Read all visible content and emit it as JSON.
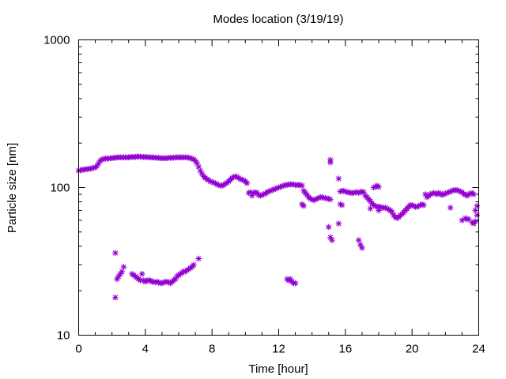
{
  "chart_data": {
    "type": "scatter",
    "title": "Modes location (3/19/19)",
    "xlabel": "Time [hour]",
    "ylabel": "Particle size [nm]",
    "xlim": [
      0,
      24
    ],
    "ylim": [
      10,
      1000
    ],
    "yscale": "log",
    "grid": false,
    "legend": "none",
    "color": "#9400d3",
    "x_ticks": [
      0,
      4,
      8,
      12,
      16,
      20,
      24
    ],
    "x_tick_labels": [
      "0",
      "4",
      "8",
      "12",
      "16",
      "20",
      "24"
    ],
    "y_ticks": [
      10,
      100,
      1000
    ],
    "y_tick_labels": [
      "10",
      "100",
      "1000"
    ],
    "series": [
      {
        "points": [
          [
            0.0,
            130
          ],
          [
            0.1,
            131
          ],
          [
            0.2,
            132
          ],
          [
            0.3,
            132
          ],
          [
            0.4,
            133
          ],
          [
            0.5,
            133
          ],
          [
            0.6,
            134
          ],
          [
            0.7,
            134
          ],
          [
            0.8,
            135
          ],
          [
            0.9,
            136
          ],
          [
            1.0,
            137
          ],
          [
            1.1,
            140
          ],
          [
            1.2,
            146
          ],
          [
            1.3,
            152
          ],
          [
            1.4,
            155
          ],
          [
            1.5,
            156
          ],
          [
            1.6,
            157
          ],
          [
            1.7,
            157
          ],
          [
            1.8,
            157
          ],
          [
            1.9,
            158
          ],
          [
            2.0,
            158
          ],
          [
            2.1,
            159
          ],
          [
            2.2,
            159
          ],
          [
            2.3,
            160
          ],
          [
            2.4,
            160
          ],
          [
            2.5,
            160
          ],
          [
            2.6,
            160
          ],
          [
            2.7,
            160
          ],
          [
            2.8,
            160
          ],
          [
            2.9,
            160
          ],
          [
            3.0,
            160
          ],
          [
            3.1,
            161
          ],
          [
            3.2,
            161
          ],
          [
            3.3,
            161
          ],
          [
            3.4,
            161
          ],
          [
            3.5,
            162
          ],
          [
            3.6,
            162
          ],
          [
            3.7,
            162
          ],
          [
            3.8,
            161
          ],
          [
            3.9,
            161
          ],
          [
            4.0,
            161
          ],
          [
            4.1,
            161
          ],
          [
            4.2,
            160
          ],
          [
            4.3,
            160
          ],
          [
            4.4,
            160
          ],
          [
            4.5,
            160
          ],
          [
            4.6,
            159
          ],
          [
            4.7,
            159
          ],
          [
            4.8,
            159
          ],
          [
            4.9,
            158
          ],
          [
            5.0,
            158
          ],
          [
            5.1,
            158
          ],
          [
            5.2,
            158
          ],
          [
            5.3,
            158
          ],
          [
            5.4,
            159
          ],
          [
            5.5,
            159
          ],
          [
            5.6,
            159
          ],
          [
            5.7,
            159
          ],
          [
            5.8,
            160
          ],
          [
            5.9,
            160
          ],
          [
            6.0,
            160
          ],
          [
            6.1,
            160
          ],
          [
            6.2,
            160
          ],
          [
            6.3,
            160
          ],
          [
            6.4,
            160
          ],
          [
            6.5,
            160
          ],
          [
            6.6,
            159
          ],
          [
            6.7,
            158
          ],
          [
            6.8,
            157
          ],
          [
            6.9,
            155
          ],
          [
            7.0,
            152
          ],
          [
            7.1,
            146
          ],
          [
            7.2,
            138
          ],
          [
            7.3,
            130
          ],
          [
            7.4,
            124
          ],
          [
            7.5,
            119
          ],
          [
            7.6,
            116
          ],
          [
            7.7,
            114
          ],
          [
            7.8,
            112
          ],
          [
            7.9,
            110
          ],
          [
            8.0,
            109
          ],
          [
            8.1,
            108
          ],
          [
            8.2,
            107
          ],
          [
            8.3,
            105
          ],
          [
            8.4,
            104
          ],
          [
            8.5,
            103
          ],
          [
            8.6,
            103
          ],
          [
            8.7,
            104
          ],
          [
            8.8,
            106
          ],
          [
            8.9,
            108
          ],
          [
            9.0,
            110
          ],
          [
            9.1,
            113
          ],
          [
            9.2,
            116
          ],
          [
            9.3,
            118
          ],
          [
            9.4,
            119
          ],
          [
            9.5,
            118
          ],
          [
            9.6,
            116
          ],
          [
            9.7,
            114
          ],
          [
            9.8,
            113
          ],
          [
            9.9,
            112
          ],
          [
            10.0,
            110
          ],
          [
            10.1,
            107
          ],
          [
            10.2,
            92
          ],
          [
            10.3,
            93
          ],
          [
            10.4,
            88
          ],
          [
            10.5,
            92
          ],
          [
            10.6,
            93
          ],
          [
            10.7,
            92
          ],
          [
            10.8,
            89
          ],
          [
            10.9,
            88
          ],
          [
            11.0,
            89
          ],
          [
            11.1,
            90
          ],
          [
            11.2,
            91
          ],
          [
            11.3,
            93
          ],
          [
            11.4,
            94
          ],
          [
            11.5,
            95
          ],
          [
            11.6,
            96
          ],
          [
            11.7,
            97
          ],
          [
            11.8,
            98
          ],
          [
            11.9,
            99
          ],
          [
            12.0,
            100
          ],
          [
            12.1,
            101
          ],
          [
            12.2,
            102
          ],
          [
            12.3,
            103
          ],
          [
            12.4,
            104
          ],
          [
            12.5,
            104
          ],
          [
            12.6,
            105
          ],
          [
            12.7,
            105
          ],
          [
            12.8,
            105
          ],
          [
            12.9,
            105
          ],
          [
            13.0,
            104
          ],
          [
            13.1,
            104
          ],
          [
            13.2,
            104
          ],
          [
            13.3,
            104
          ],
          [
            13.4,
            103
          ],
          [
            13.5,
            95
          ],
          [
            13.6,
            92
          ],
          [
            13.7,
            89
          ],
          [
            13.8,
            86
          ],
          [
            13.9,
            84
          ],
          [
            14.0,
            83
          ],
          [
            14.1,
            82
          ],
          [
            14.2,
            83
          ],
          [
            14.3,
            84
          ],
          [
            14.4,
            85
          ],
          [
            14.5,
            86
          ],
          [
            14.6,
            86
          ],
          [
            14.7,
            85
          ],
          [
            14.8,
            85
          ],
          [
            14.9,
            84
          ],
          [
            15.0,
            84
          ],
          [
            15.1,
            83
          ],
          [
            15.7,
            94
          ],
          [
            15.8,
            95
          ],
          [
            15.9,
            95
          ],
          [
            16.0,
            94
          ],
          [
            16.1,
            93
          ],
          [
            16.2,
            93
          ],
          [
            16.3,
            92
          ],
          [
            16.4,
            92
          ],
          [
            16.5,
            92
          ],
          [
            16.6,
            93
          ],
          [
            16.7,
            93
          ],
          [
            16.8,
            92
          ],
          [
            16.9,
            93
          ],
          [
            17.0,
            94
          ],
          [
            17.1,
            93
          ],
          [
            17.2,
            88
          ],
          [
            17.3,
            86
          ],
          [
            17.4,
            83
          ],
          [
            17.5,
            81
          ],
          [
            17.6,
            78
          ],
          [
            17.7,
            76
          ],
          [
            17.8,
            75
          ],
          [
            17.9,
            74
          ],
          [
            18.0,
            74
          ],
          [
            18.1,
            74
          ],
          [
            18.2,
            73
          ],
          [
            18.3,
            73
          ],
          [
            18.4,
            73
          ],
          [
            18.5,
            72
          ],
          [
            18.6,
            71
          ],
          [
            18.7,
            70
          ],
          [
            18.8,
            68
          ],
          [
            18.9,
            65
          ],
          [
            19.0,
            63
          ],
          [
            19.1,
            62
          ],
          [
            19.2,
            63
          ],
          [
            19.3,
            65
          ],
          [
            19.4,
            66
          ],
          [
            19.5,
            68
          ],
          [
            19.6,
            70
          ],
          [
            19.7,
            72
          ],
          [
            19.8,
            74
          ],
          [
            19.9,
            76
          ],
          [
            20.0,
            76
          ],
          [
            20.1,
            75
          ],
          [
            20.2,
            74
          ],
          [
            20.3,
            74
          ],
          [
            20.4,
            75
          ],
          [
            20.5,
            76
          ],
          [
            20.6,
            77
          ],
          [
            20.7,
            76
          ],
          [
            20.8,
            90
          ],
          [
            20.9,
            86
          ],
          [
            21.0,
            88
          ],
          [
            21.1,
            90
          ],
          [
            21.2,
            91
          ],
          [
            21.3,
            92
          ],
          [
            21.4,
            91
          ],
          [
            21.5,
            90
          ],
          [
            21.6,
            92
          ],
          [
            21.7,
            91
          ],
          [
            21.8,
            89
          ],
          [
            21.9,
            90
          ],
          [
            22.0,
            91
          ],
          [
            22.1,
            92
          ],
          [
            22.2,
            93
          ],
          [
            22.3,
            94
          ],
          [
            22.4,
            95
          ],
          [
            22.5,
            96
          ],
          [
            22.6,
            96
          ],
          [
            22.7,
            96
          ],
          [
            22.8,
            95
          ],
          [
            22.9,
            94
          ],
          [
            23.0,
            93
          ],
          [
            23.1,
            91
          ],
          [
            23.2,
            89
          ],
          [
            23.3,
            88
          ],
          [
            23.4,
            90
          ],
          [
            23.5,
            91
          ],
          [
            23.6,
            92
          ],
          [
            23.7,
            90
          ],
          [
            23.8,
            70
          ],
          [
            23.9,
            75
          ],
          [
            2.2,
            36
          ],
          [
            2.2,
            18
          ],
          [
            2.3,
            24
          ],
          [
            2.4,
            25
          ],
          [
            2.5,
            26
          ],
          [
            2.6,
            27
          ],
          [
            2.7,
            29
          ],
          [
            3.2,
            26
          ],
          [
            3.3,
            25.5
          ],
          [
            3.4,
            25
          ],
          [
            3.5,
            24.5
          ],
          [
            3.6,
            24
          ],
          [
            3.7,
            23.5
          ],
          [
            3.8,
            26
          ],
          [
            3.9,
            23.5
          ],
          [
            4.0,
            23
          ],
          [
            4.1,
            23.5
          ],
          [
            4.2,
            23.5
          ],
          [
            4.3,
            23.5
          ],
          [
            4.4,
            23
          ],
          [
            4.5,
            23
          ],
          [
            4.6,
            22.8
          ],
          [
            4.7,
            23
          ],
          [
            4.8,
            22.8
          ],
          [
            4.9,
            22.5
          ],
          [
            5.0,
            22.5
          ],
          [
            5.1,
            22.8
          ],
          [
            5.2,
            23
          ],
          [
            5.3,
            23
          ],
          [
            5.4,
            22.8
          ],
          [
            5.5,
            22.5
          ],
          [
            5.6,
            23
          ],
          [
            5.7,
            23.5
          ],
          [
            5.8,
            24
          ],
          [
            5.9,
            25
          ],
          [
            6.0,
            25.5
          ],
          [
            6.1,
            26
          ],
          [
            6.2,
            26.5
          ],
          [
            6.3,
            27
          ],
          [
            6.4,
            27
          ],
          [
            6.5,
            27.5
          ],
          [
            6.6,
            28
          ],
          [
            6.7,
            28.5
          ],
          [
            6.8,
            29
          ],
          [
            6.9,
            30
          ],
          [
            7.2,
            33
          ],
          [
            12.5,
            24
          ],
          [
            12.6,
            23.5
          ],
          [
            12.7,
            24
          ],
          [
            12.8,
            23
          ],
          [
            12.9,
            22.5
          ],
          [
            13.0,
            22.5
          ],
          [
            13.4,
            77
          ],
          [
            13.5,
            75
          ],
          [
            15.0,
            54
          ],
          [
            15.1,
            46
          ],
          [
            15.2,
            44
          ],
          [
            15.1,
            148
          ],
          [
            15.1,
            154
          ],
          [
            15.6,
            57
          ],
          [
            15.6,
            115
          ],
          [
            15.7,
            77
          ],
          [
            15.8,
            76
          ],
          [
            16.8,
            44
          ],
          [
            16.9,
            41
          ],
          [
            17.0,
            39
          ],
          [
            17.5,
            72
          ],
          [
            17.7,
            100
          ],
          [
            17.8,
            101
          ],
          [
            17.9,
            103
          ],
          [
            18.0,
            101
          ],
          [
            18.0,
            70
          ],
          [
            22.3,
            73
          ],
          [
            23.0,
            60
          ],
          [
            23.2,
            62
          ],
          [
            23.3,
            61
          ],
          [
            23.4,
            61
          ],
          [
            23.6,
            58
          ],
          [
            23.7,
            57
          ],
          [
            23.8,
            59
          ],
          [
            23.9,
            65
          ]
        ]
      }
    ]
  }
}
